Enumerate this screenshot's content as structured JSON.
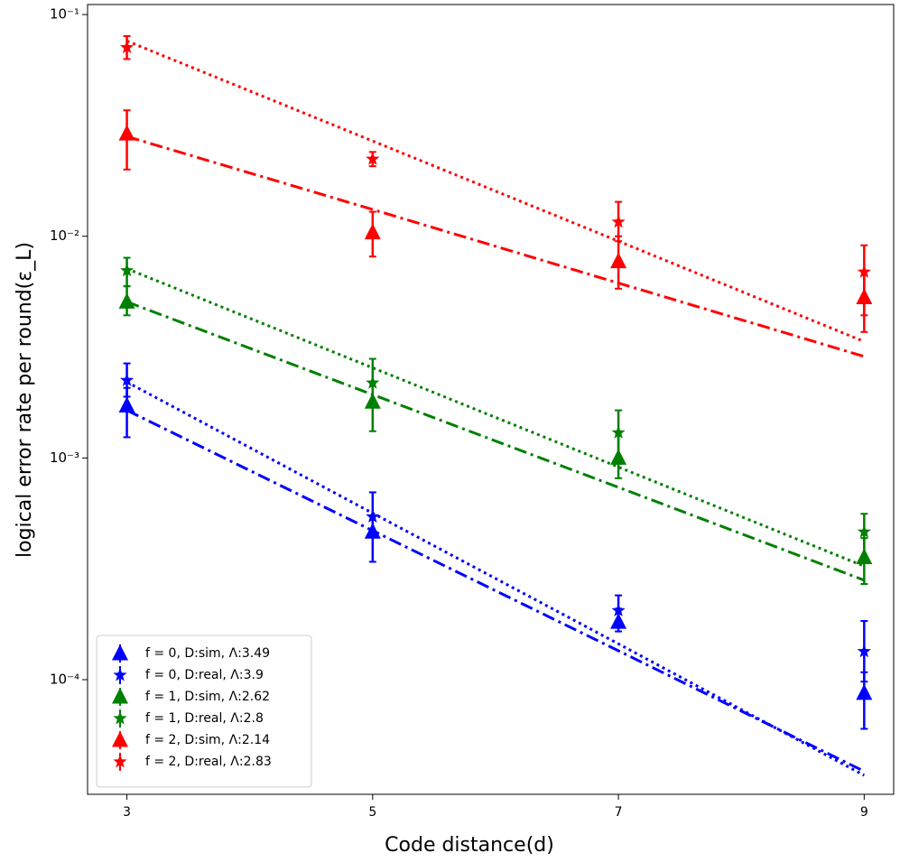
{
  "chart_data": {
    "type": "scatter",
    "xlabel": "Code distance(d)",
    "ylabel": "logical error rate per round(ε_L)",
    "x": [
      3,
      5,
      7,
      9
    ],
    "xlim": [
      2.68,
      9.24
    ],
    "xticks": [
      3,
      5,
      7,
      9
    ],
    "ylim": [
      3.04e-05,
      0.111
    ],
    "log_y": true,
    "yticks": [
      {
        "value": 0.1,
        "label": "10⁻¹"
      },
      {
        "value": 0.01,
        "label": "10⁻²"
      },
      {
        "value": 0.001,
        "label": "10⁻³"
      },
      {
        "value": 0.0001,
        "label": "10⁻⁴"
      }
    ],
    "legend": "lower left",
    "series": [
      {
        "name": "f = 0, D:sim, Λ:3.49",
        "color": "#0000ff",
        "marker": "triangle",
        "fit_style": "dash-dot",
        "values": [
          0.00172,
          0.000464,
          0.000182,
          8.7e-05
        ],
        "err_low": [
          0.00124,
          0.00034,
          0.000165,
          6e-05
        ],
        "err_high": [
          0.00207,
          0.00055,
          0.000209,
          0.000108
        ],
        "fit": [
          0.00164,
          0.00047,
          0.000135,
          3.86e-05
        ]
      },
      {
        "name": "f = 0, D:real, Λ:3.9",
        "color": "#0000ff",
        "marker": "star",
        "fit_style": "dotted",
        "values": [
          0.00224,
          0.000543,
          0.000205,
          0.000134
        ],
        "err_low": [
          0.00189,
          0.00044,
          0.000182,
          9.8e-05
        ],
        "err_high": [
          0.00267,
          0.0007,
          0.00024,
          0.000184
        ],
        "fit": [
          0.0022,
          0.000564,
          0.000145,
          3.7e-05
        ]
      },
      {
        "name": "f = 1, D:sim, Λ:2.62",
        "color": "#008000",
        "marker": "triangle",
        "fit_style": "dash-dot",
        "values": [
          0.00506,
          0.00179,
          0.001,
          0.000356
        ],
        "err_low": [
          0.0044,
          0.00132,
          0.00081,
          0.00027
        ],
        "err_high": [
          0.00595,
          0.00218,
          0.0013,
          0.000435
        ],
        "fit": [
          0.00506,
          0.00193,
          0.000737,
          0.000281
        ]
      },
      {
        "name": "f = 1, D:real, Λ:2.8",
        "color": "#008000",
        "marker": "star",
        "fit_style": "dotted",
        "values": [
          0.007,
          0.00218,
          0.0013,
          0.000464
        ],
        "err_low": [
          0.00595,
          0.00172,
          0.001,
          0.00035
        ],
        "err_high": [
          0.008,
          0.0028,
          0.00164,
          0.00056
        ],
        "fit": [
          0.00714,
          0.00255,
          0.00091,
          0.000325
        ]
      },
      {
        "name": "f = 2, D:sim, Λ:2.14",
        "color": "#ff0000",
        "marker": "triangle",
        "fit_style": "dash-dot",
        "values": [
          0.029,
          0.0104,
          0.0077,
          0.0053
        ],
        "err_low": [
          0.02,
          0.0081,
          0.0058,
          0.0037
        ],
        "err_high": [
          0.037,
          0.0129,
          0.01,
          0.007
        ],
        "fit": [
          0.0282,
          0.0132,
          0.00615,
          0.00287
        ]
      },
      {
        "name": "f = 2, D:real, Λ:2.83",
        "color": "#ff0000",
        "marker": "star",
        "fit_style": "dotted",
        "values": [
          0.071,
          0.0223,
          0.0116,
          0.0069
        ],
        "err_low": [
          0.063,
          0.0207,
          0.0095,
          0.0044
        ],
        "err_high": [
          0.08,
          0.024,
          0.0143,
          0.0091
        ],
        "fit": [
          0.076,
          0.0269,
          0.0095,
          0.00335
        ]
      }
    ]
  }
}
